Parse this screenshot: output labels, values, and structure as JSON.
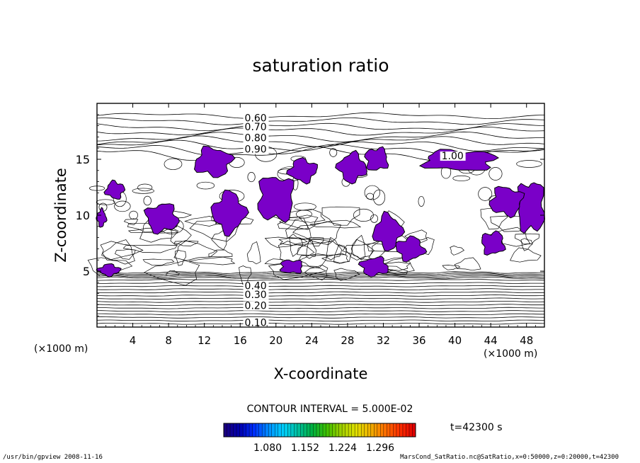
{
  "chart_data": {
    "type": "heatmap",
    "title": "saturation ratio",
    "xlabel": "X-coordinate",
    "ylabel": "Z-coordinate",
    "x_unit_left": "(×1000 m)",
    "x_unit_right": "(×1000 m)",
    "xlim": [
      0,
      50
    ],
    "ylim": [
      0,
      20
    ],
    "xticks": [
      4,
      8,
      12,
      16,
      20,
      24,
      28,
      32,
      36,
      40,
      44,
      48
    ],
    "yticks": [
      5,
      10,
      15
    ],
    "contour_labels": [
      {
        "text": "0.60",
        "x": 16.5,
        "z": 18.4
      },
      {
        "text": "0.70",
        "x": 16.5,
        "z": 17.6
      },
      {
        "text": "0.80",
        "x": 16.5,
        "z": 16.6
      },
      {
        "text": "0.90",
        "x": 16.5,
        "z": 15.6
      },
      {
        "text": "1.00",
        "x": 38.5,
        "z": 15.0
      },
      {
        "text": "0.40",
        "x": 16.5,
        "z": 3.4
      },
      {
        "text": "0.30",
        "x": 16.5,
        "z": 2.6
      },
      {
        "text": "0.20",
        "x": 16.5,
        "z": 1.6
      },
      {
        "text": "0.10",
        "x": 16.5,
        "z": 0.1
      }
    ],
    "contour_interval_text": "CONTOUR INTERVAL = 5.000E-02",
    "colorbar": {
      "ticks": [
        "1.080",
        "1.152",
        "1.224",
        "1.296"
      ],
      "colors": [
        "#1a0080",
        "#0000b0",
        "#0030ff",
        "#0090ff",
        "#00d0ff",
        "#00c0a0",
        "#00b040",
        "#40c000",
        "#a0d000",
        "#e0e000",
        "#f0b000",
        "#ff7000",
        "#ff3000",
        "#e00000"
      ]
    },
    "time_label": "t=42300 s",
    "supersaturated_fill_color": "#7a00c8",
    "supersaturated_regions": [
      {
        "x0": 11.0,
        "x1": 15.0,
        "z0": 13.5,
        "z1": 16.0
      },
      {
        "x0": 13.0,
        "x1": 16.5,
        "z0": 8.5,
        "z1": 12.0
      },
      {
        "x0": 5.5,
        "x1": 9.0,
        "z0": 8.5,
        "z1": 11.0
      },
      {
        "x0": 18.0,
        "x1": 22.0,
        "z0": 9.5,
        "z1": 13.5
      },
      {
        "x0": 21.5,
        "x1": 24.5,
        "z0": 13.0,
        "z1": 15.0
      },
      {
        "x0": 27.0,
        "x1": 30.0,
        "z0": 13.0,
        "z1": 15.5
      },
      {
        "x0": 30.0,
        "x1": 32.5,
        "z0": 14.0,
        "z1": 16.0
      },
      {
        "x0": 36.5,
        "x1": 44.5,
        "z0": 14.0,
        "z1": 15.8
      },
      {
        "x0": 31.0,
        "x1": 34.0,
        "z0": 7.0,
        "z1": 10.0
      },
      {
        "x0": 33.5,
        "x1": 36.5,
        "z0": 6.0,
        "z1": 8.0
      },
      {
        "x0": 47.0,
        "x1": 50.0,
        "z0": 8.5,
        "z1": 13.0
      },
      {
        "x0": 44.0,
        "x1": 47.5,
        "z0": 10.0,
        "z1": 12.5
      },
      {
        "x0": 0.2,
        "x1": 2.5,
        "z0": 4.6,
        "z1": 5.6
      },
      {
        "x0": 29.5,
        "x1": 32.5,
        "z0": 4.6,
        "z1": 6.2
      },
      {
        "x0": 20.5,
        "x1": 23.0,
        "z0": 4.8,
        "z1": 6.0
      },
      {
        "x0": 1.0,
        "x1": 3.0,
        "z0": 11.5,
        "z1": 13.0
      },
      {
        "x0": 0.0,
        "x1": 1.0,
        "z0": 9.0,
        "z1": 10.5
      },
      {
        "x0": 43.0,
        "x1": 45.5,
        "z0": 6.5,
        "z1": 8.5
      }
    ]
  },
  "footer": {
    "left": "/usr/bin/gpview   2008-11-16",
    "right": "MarsCond_SatRatio.nc@SatRatio,x=0:50000,z=0:20000,t=42300"
  }
}
